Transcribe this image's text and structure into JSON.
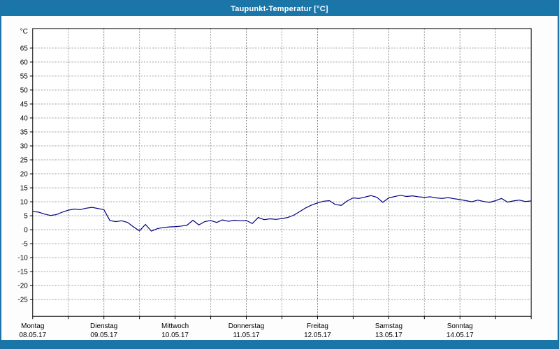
{
  "title": "Taupunkt-Temperatur [°C]",
  "colors": {
    "titlebar": "#1a76a8",
    "bottombar": "#1a76a8",
    "window_border": "#1d74a4",
    "plot_background": "#ffffff",
    "grid": "#9b9b9b",
    "grid_day": "#7d7d7d",
    "axis": "#000000",
    "line": "#000080"
  },
  "chart_data": {
    "type": "line",
    "title": "Taupunkt-Temperatur [°C]",
    "xlabel": "",
    "ylabel": "°C",
    "ylim": [
      -25,
      65
    ],
    "ytick_step": 5,
    "yticks": [
      65,
      60,
      55,
      50,
      45,
      40,
      35,
      30,
      25,
      20,
      15,
      10,
      5,
      0,
      -5,
      -10,
      -15,
      -20,
      -25
    ],
    "grid": "dashed",
    "legend": "none",
    "x_days": [
      {
        "day": "Montag",
        "date": "08.05.17"
      },
      {
        "day": "Dienstag",
        "date": "09.05.17"
      },
      {
        "day": "Mittwoch",
        "date": "10.05.17"
      },
      {
        "day": "Donnerstag",
        "date": "11.05.17"
      },
      {
        "day": "Freitag",
        "date": "12.05.17"
      },
      {
        "day": "Samstag",
        "date": "13.05.17"
      },
      {
        "day": "Sonntag",
        "date": "14.05.17"
      }
    ],
    "hours_per_point": 2,
    "series_name": "Taupunkt-Temperatur",
    "values": [
      6.5,
      6.3,
      5.6,
      5.1,
      5.4,
      6.3,
      7.0,
      7.4,
      7.2,
      7.7,
      8.0,
      7.6,
      7.2,
      3.3,
      2.9,
      3.2,
      2.6,
      1.0,
      -0.4,
      1.9,
      -0.5,
      0.4,
      0.8,
      1.0,
      1.1,
      1.3,
      1.6,
      3.4,
      1.7,
      2.9,
      3.3,
      2.6,
      3.5,
      3.0,
      3.4,
      3.2,
      3.3,
      2.2,
      4.4,
      3.6,
      3.9,
      3.7,
      4.0,
      4.4,
      5.2,
      6.5,
      7.8,
      8.8,
      9.6,
      10.2,
      10.4,
      9.0,
      8.7,
      10.3,
      11.4,
      11.2,
      11.7,
      12.2,
      11.6,
      9.8,
      11.4,
      11.9,
      12.3,
      11.9,
      12.1,
      11.8,
      11.6,
      11.8,
      11.4,
      11.2,
      11.5,
      11.1,
      10.8,
      10.4,
      10.0,
      10.6,
      10.1,
      9.8,
      10.4,
      11.2,
      9.9,
      10.3,
      10.6,
      10.1,
      10.3
    ]
  }
}
